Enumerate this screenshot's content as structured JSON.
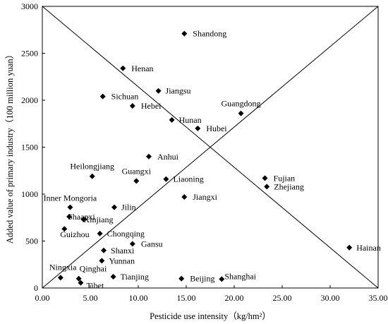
{
  "chart_data": {
    "type": "scatter",
    "xlabel": "Pesticide use intensity（kg/hm²）",
    "ylabel": "Added value of primary industry（100 million yuan）",
    "xlim": [
      0,
      35
    ],
    "ylim": [
      0,
      3000
    ],
    "x_ticks": [
      "0.00",
      "5.00",
      "10.00",
      "15.00",
      "20.00",
      "25.00",
      "30.00",
      "35.00"
    ],
    "y_ticks": [
      "0",
      "500",
      "1000",
      "1500",
      "2000",
      "2500",
      "3000"
    ],
    "grid": false,
    "marker": "diamond",
    "marker_color": "#000000",
    "reference_lines": [
      {
        "from": [
          0,
          3000
        ],
        "to": [
          35,
          0
        ]
      },
      {
        "from": [
          0,
          0
        ],
        "to": [
          35,
          3000
        ]
      }
    ],
    "points": [
      {
        "name": "Shandong",
        "x": 14.8,
        "y": 2710
      },
      {
        "name": "Henan",
        "x": 8.4,
        "y": 2340
      },
      {
        "name": "Jiangsu",
        "x": 12.1,
        "y": 2100
      },
      {
        "name": "Sichuan",
        "x": 6.3,
        "y": 2040
      },
      {
        "name": "Hebei",
        "x": 9.4,
        "y": 1940
      },
      {
        "name": "Hunan",
        "x": 13.5,
        "y": 1790
      },
      {
        "name": "Hubei",
        "x": 16.2,
        "y": 1700
      },
      {
        "name": "Guangdong",
        "x": 20.7,
        "y": 1860
      },
      {
        "name": "Anhui",
        "x": 11.1,
        "y": 1400
      },
      {
        "name": "Heilongjiang",
        "x": 5.2,
        "y": 1190
      },
      {
        "name": "Guangxi",
        "x": 9.8,
        "y": 1140
      },
      {
        "name": "Liaoning",
        "x": 12.9,
        "y": 1160
      },
      {
        "name": "Fujian",
        "x": 23.2,
        "y": 1170
      },
      {
        "name": "Zhejiang",
        "x": 23.4,
        "y": 1080
      },
      {
        "name": "Jiangxi",
        "x": 14.8,
        "y": 970
      },
      {
        "name": "Inner Mongoria",
        "x": 2.9,
        "y": 860
      },
      {
        "name": "Jilin",
        "x": 7.5,
        "y": 860
      },
      {
        "name": "Shaanxi",
        "x": 2.8,
        "y": 760
      },
      {
        "name": "Xinjiang",
        "x": 4.3,
        "y": 730
      },
      {
        "name": "Guizhou",
        "x": 2.3,
        "y": 630
      },
      {
        "name": "Chongqing",
        "x": 6.0,
        "y": 580
      },
      {
        "name": "Gansu",
        "x": 9.4,
        "y": 470
      },
      {
        "name": "Shanxi",
        "x": 6.4,
        "y": 400
      },
      {
        "name": "Yunnan",
        "x": 6.2,
        "y": 290
      },
      {
        "name": "Hainan",
        "x": 32.0,
        "y": 430
      },
      {
        "name": "Ningxia",
        "x": 1.9,
        "y": 110
      },
      {
        "name": "Qinghai",
        "x": 3.8,
        "y": 100
      },
      {
        "name": "Tibet",
        "x": 4.0,
        "y": 55
      },
      {
        "name": "Tianjing",
        "x": 7.4,
        "y": 120
      },
      {
        "name": "Beijing",
        "x": 14.5,
        "y": 100
      },
      {
        "name": "Shanghai",
        "x": 18.7,
        "y": 95
      }
    ]
  }
}
